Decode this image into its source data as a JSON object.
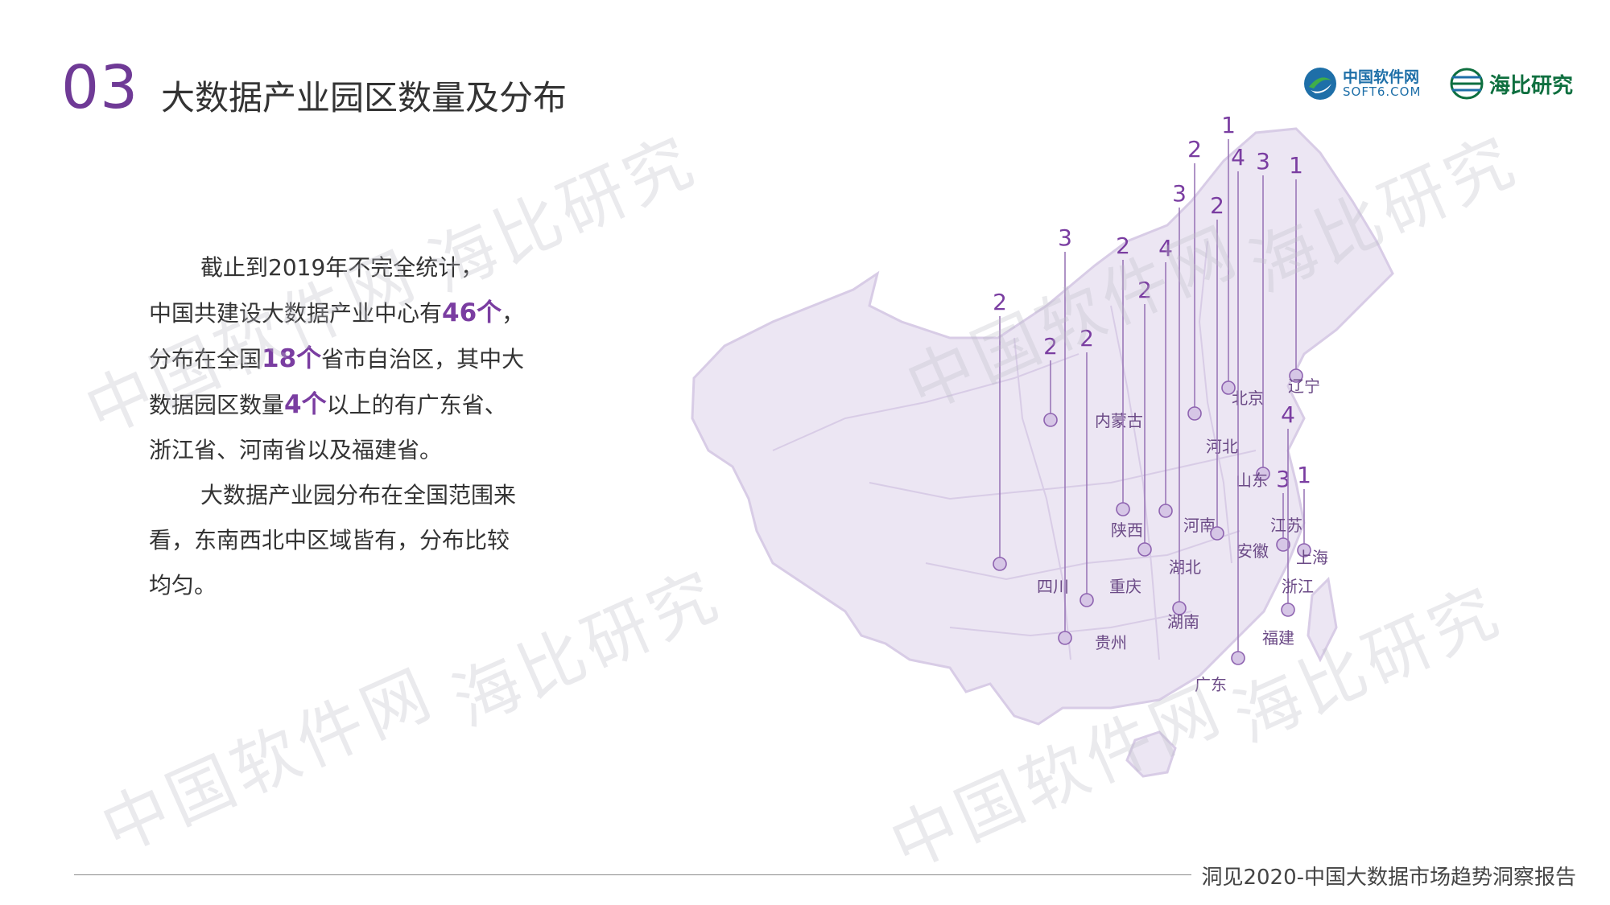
{
  "header": {
    "section_number": "03",
    "title": "大数据产业园区数量及分布"
  },
  "logos": {
    "soft6_cn": "中国软件网",
    "soft6_en": "SOFT6.COM",
    "haibi": "海比研究"
  },
  "body": {
    "p1_intro": "截止到2019年不完全统计，",
    "p1_a": "中国共建设大数据产业中心有",
    "p1_hl1": "46个",
    "p1_b": "，分布在全国",
    "p1_hl2": "18个",
    "p1_c": "省市自治区，其中大数据园区数量",
    "p1_hl3": "4个",
    "p1_d": "以上的有广东省、浙江省、河南省以及福建省。",
    "p2": "大数据产业园分布在全国范围来看，东南西北中区域皆有，分布比较均匀。"
  },
  "map_data": {
    "provinces": [
      {
        "name": "北京",
        "count": "1"
      },
      {
        "name": "辽宁",
        "count": "1"
      },
      {
        "name": "内蒙古",
        "count": "2"
      },
      {
        "name": "河北",
        "count": "2"
      },
      {
        "name": "山东",
        "count": "3"
      },
      {
        "name": "陕西",
        "count": "2"
      },
      {
        "name": "河南",
        "count": "4"
      },
      {
        "name": "安徽",
        "count": "2"
      },
      {
        "name": "江苏",
        "count": "3"
      },
      {
        "name": "上海",
        "count": "1"
      },
      {
        "name": "湖北",
        "count": "2"
      },
      {
        "name": "四川",
        "count": "2"
      },
      {
        "name": "重庆",
        "count": "2"
      },
      {
        "name": "浙江",
        "count": "4"
      },
      {
        "name": "湖南",
        "count": "3"
      },
      {
        "name": "贵州",
        "count": "3"
      },
      {
        "name": "福建",
        "count": "4"
      },
      {
        "name": "广东",
        "count": ""
      }
    ],
    "colors": {
      "accent": "#7a3da1",
      "map_fill": "#ece6f3",
      "map_stroke": "#d8cce6"
    }
  },
  "watermarks": [
    "中国软件网",
    "海比研究",
    "中国软件网",
    "海比研究",
    "中国软件网",
    "海比研究",
    "中国软件网",
    "海比研究"
  ],
  "footer": {
    "text": "洞见2020-中国大数据市场趋势洞察报告"
  }
}
